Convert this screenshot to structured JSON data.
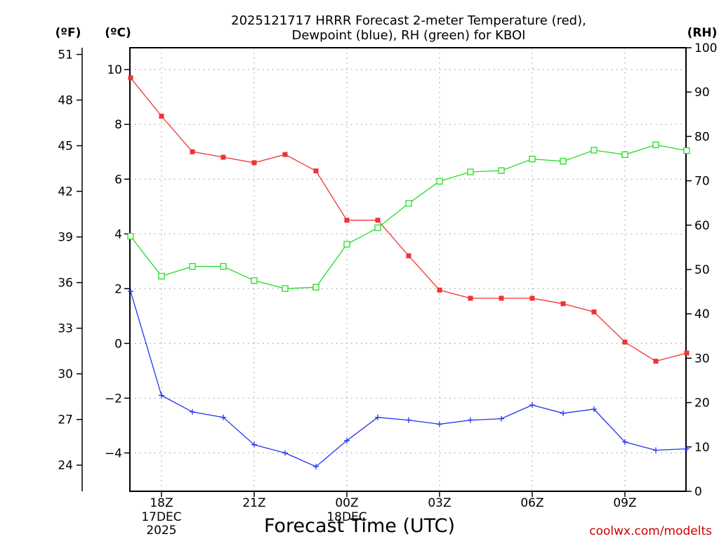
{
  "chart_data": {
    "type": "line",
    "title_lines": [
      "2025121717 HRRR Forecast 2-meter Temperature (red),",
      "Dewpoint (blue), RH (green) for KBOI"
    ],
    "xlabel": "Forecast Time (UTC)",
    "credit": "coolwx.com/modelts",
    "unit_labels": {
      "fahrenheit": "(ºF)",
      "celsius": "(ºC)",
      "rh": "(RH)"
    },
    "x_hours": [
      17,
      18,
      19,
      20,
      21,
      22,
      23,
      24,
      25,
      26,
      27,
      28,
      29,
      30,
      31,
      32,
      33,
      34,
      35
    ],
    "x_range": [
      17,
      35
    ],
    "x_ticks": [
      {
        "hour": 18,
        "label": "18Z",
        "sub1": "17DEC",
        "sub2": "2025"
      },
      {
        "hour": 21,
        "label": "21Z",
        "sub1": "",
        "sub2": ""
      },
      {
        "hour": 24,
        "label": "00Z",
        "sub1": "18DEC",
        "sub2": ""
      },
      {
        "hour": 27,
        "label": "03Z",
        "sub1": "",
        "sub2": ""
      },
      {
        "hour": 30,
        "label": "06Z",
        "sub1": "",
        "sub2": ""
      },
      {
        "hour": 33,
        "label": "09Z",
        "sub1": "",
        "sub2": ""
      }
    ],
    "y_celsius": {
      "range": [
        -5.4,
        10.8
      ],
      "ticks": [
        -4,
        -2,
        0,
        2,
        4,
        6,
        8,
        10
      ]
    },
    "y_fahrenheit": {
      "ticks": [
        24,
        27,
        30,
        33,
        36,
        39,
        42,
        45,
        48,
        51
      ]
    },
    "y_rh": {
      "range": [
        0,
        100
      ],
      "ticks": [
        0,
        10,
        20,
        30,
        40,
        50,
        60,
        70,
        80,
        90,
        100
      ]
    },
    "series": [
      {
        "name": "Temperature",
        "unit": "C",
        "color": "#ee3333",
        "marker": "filled-square",
        "values": [
          9.7,
          8.3,
          7.0,
          6.8,
          6.6,
          6.9,
          6.3,
          4.5,
          4.5,
          3.2,
          1.95,
          1.65,
          1.65,
          1.65,
          1.45,
          1.15,
          0.05,
          -0.65,
          -0.35
        ]
      },
      {
        "name": "Dewpoint",
        "unit": "C",
        "color": "#2233ee",
        "marker": "plus",
        "values": [
          1.9,
          -1.9,
          -2.5,
          -2.7,
          -3.7,
          -4.0,
          -4.5,
          -3.55,
          -2.7,
          -2.8,
          -2.95,
          -2.8,
          -2.75,
          -2.25,
          -2.55,
          -2.4,
          -3.6,
          -3.9,
          -3.85
        ]
      },
      {
        "name": "RH",
        "unit": "%",
        "color": "#22dd22",
        "marker": "open-square",
        "values": [
          57.5,
          48.5,
          50.7,
          50.7,
          47.5,
          45.7,
          46.0,
          55.7,
          59.4,
          64.9,
          69.9,
          72.0,
          72.3,
          74.9,
          74.4,
          76.9,
          75.9,
          78.1,
          76.8
        ]
      }
    ],
    "grid": true
  }
}
